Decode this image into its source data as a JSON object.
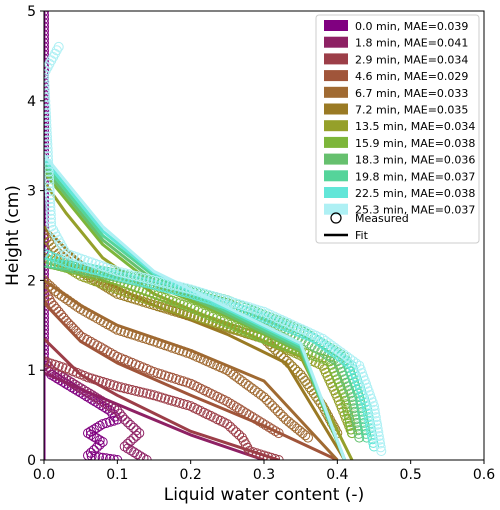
{
  "chart_data": {
    "type": "line",
    "title": "",
    "xlabel": "Liquid water content (-)",
    "ylabel": "Height (cm)",
    "xlim": [
      0.0,
      0.6
    ],
    "ylim": [
      0,
      5
    ],
    "xticks": [
      "0.0",
      "0.1",
      "0.2",
      "0.3",
      "0.4",
      "0.5",
      "0.6"
    ],
    "yticks": [
      "0",
      "1",
      "2",
      "3",
      "4",
      "5"
    ],
    "grid": false,
    "legend_position": "top-right",
    "legend_measured": "Measured",
    "legend_fit": "Fit",
    "series": [
      {
        "name": "0.0 min, MAE=0.039",
        "color": "#800080",
        "fit": [
          [
            0.0,
            0.0
          ],
          [
            0.0,
            5.0
          ]
        ],
        "measured": [
          [
            0.1,
            0.0
          ],
          [
            0.06,
            0.05
          ],
          [
            0.08,
            0.2
          ],
          [
            0.06,
            0.3
          ],
          [
            0.08,
            0.4
          ],
          [
            0.1,
            0.45
          ],
          [
            0.09,
            0.55
          ],
          [
            0.07,
            0.65
          ],
          [
            0.05,
            0.75
          ],
          [
            0.03,
            0.85
          ],
          [
            0.01,
            0.95
          ],
          [
            0.0,
            1.05
          ],
          [
            0.0,
            5.0
          ]
        ]
      },
      {
        "name": "1.8 min, MAE=0.041",
        "color": "#8e2164",
        "fit": [
          [
            0.3,
            0.0
          ],
          [
            0.2,
            0.28
          ],
          [
            0.1,
            0.62
          ],
          [
            0.05,
            0.79
          ],
          [
            0.0,
            0.97
          ]
        ],
        "measured": [
          [
            0.14,
            0.0
          ],
          [
            0.11,
            0.15
          ],
          [
            0.13,
            0.3
          ],
          [
            0.11,
            0.45
          ],
          [
            0.1,
            0.55
          ],
          [
            0.07,
            0.7
          ],
          [
            0.05,
            0.8
          ],
          [
            0.03,
            0.9
          ],
          [
            0.01,
            1.0
          ],
          [
            0.0,
            1.1
          ]
        ]
      },
      {
        "name": "2.9 min, MAE=0.034",
        "color": "#9c3e48",
        "fit": [
          [
            0.32,
            0.0
          ],
          [
            0.2,
            0.32
          ],
          [
            0.1,
            0.72
          ],
          [
            0.05,
            0.95
          ],
          [
            0.0,
            1.35
          ]
        ],
        "measured": [
          [
            0.32,
            0.0
          ],
          [
            0.28,
            0.1
          ],
          [
            0.27,
            0.25
          ],
          [
            0.25,
            0.4
          ],
          [
            0.2,
            0.6
          ],
          [
            0.15,
            0.72
          ],
          [
            0.1,
            0.82
          ],
          [
            0.06,
            0.92
          ],
          [
            0.03,
            1.02
          ],
          [
            0.0,
            1.1
          ]
        ]
      },
      {
        "name": "4.6 min, MAE=0.029",
        "color": "#a0553a",
        "fit": [
          [
            0.4,
            0.0
          ],
          [
            0.3,
            0.38
          ],
          [
            0.2,
            0.72
          ],
          [
            0.1,
            1.08
          ],
          [
            0.05,
            1.32
          ],
          [
            0.0,
            1.75
          ]
        ],
        "measured": [
          [
            0.32,
            0.3
          ],
          [
            0.28,
            0.5
          ],
          [
            0.25,
            0.65
          ],
          [
            0.2,
            0.85
          ],
          [
            0.15,
            0.98
          ],
          [
            0.1,
            1.15
          ],
          [
            0.05,
            1.38
          ],
          [
            0.03,
            1.55
          ],
          [
            0.01,
            1.75
          ],
          [
            0.0,
            1.9
          ]
        ]
      },
      {
        "name": "6.7 min, MAE=0.033",
        "color": "#a06a32",
        "fit": [
          [
            0.4,
            0.0
          ],
          [
            0.3,
            0.88
          ],
          [
            0.2,
            1.22
          ],
          [
            0.1,
            1.5
          ],
          [
            0.05,
            1.72
          ],
          [
            0.0,
            2.0
          ]
        ],
        "measured": [
          [
            0.36,
            0.25
          ],
          [
            0.33,
            0.45
          ],
          [
            0.3,
            0.7
          ],
          [
            0.25,
            1.0
          ],
          [
            0.2,
            1.18
          ],
          [
            0.15,
            1.32
          ],
          [
            0.1,
            1.45
          ],
          [
            0.05,
            1.68
          ],
          [
            0.02,
            1.85
          ],
          [
            0.0,
            2.0
          ]
        ]
      },
      {
        "name": "7.2 min, MAE=0.035",
        "color": "#9a7a24",
        "fit": [
          [
            0.41,
            0.0
          ],
          [
            0.33,
            1.08
          ],
          [
            0.25,
            1.4
          ],
          [
            0.15,
            1.72
          ],
          [
            0.08,
            2.0
          ],
          [
            0.03,
            2.35
          ],
          [
            0.0,
            2.6
          ]
        ],
        "measured": [
          [
            0.4,
            0.3
          ],
          [
            0.38,
            0.6
          ],
          [
            0.35,
            0.95
          ],
          [
            0.3,
            1.35
          ],
          [
            0.2,
            1.6
          ],
          [
            0.1,
            1.85
          ],
          [
            0.05,
            2.1
          ],
          [
            0.02,
            2.3
          ],
          [
            0.0,
            2.5
          ]
        ]
      },
      {
        "name": "13.5 min, MAE=0.034",
        "color": "#95a02a",
        "fit": [
          [
            0.42,
            0.0
          ],
          [
            0.35,
            1.15
          ],
          [
            0.25,
            1.5
          ],
          [
            0.15,
            1.85
          ],
          [
            0.08,
            2.25
          ],
          [
            0.03,
            2.75
          ],
          [
            0.0,
            3.1
          ]
        ],
        "measured": [
          [
            0.42,
            0.3
          ],
          [
            0.4,
            0.7
          ],
          [
            0.38,
            1.05
          ],
          [
            0.3,
            1.35
          ],
          [
            0.2,
            1.62
          ],
          [
            0.1,
            1.9
          ],
          [
            0.05,
            2.05
          ],
          [
            0.02,
            2.2
          ],
          [
            0.0,
            2.25
          ]
        ]
      },
      {
        "name": "15.9 min, MAE=0.038",
        "color": "#7db63a",
        "fit": [
          [
            0.41,
            0.0
          ],
          [
            0.35,
            1.2
          ],
          [
            0.25,
            1.6
          ],
          [
            0.15,
            1.95
          ],
          [
            0.08,
            2.4
          ],
          [
            0.03,
            2.9
          ],
          [
            0.0,
            3.2
          ]
        ],
        "measured": [
          [
            0.42,
            0.3
          ],
          [
            0.41,
            0.7
          ],
          [
            0.39,
            1.1
          ],
          [
            0.3,
            1.35
          ],
          [
            0.2,
            1.7
          ],
          [
            0.1,
            2.0
          ],
          [
            0.05,
            2.1
          ],
          [
            0.0,
            2.2
          ]
        ]
      },
      {
        "name": "18.3 min, MAE=0.036",
        "color": "#66c06e",
        "fit": [
          [
            0.41,
            0.0
          ],
          [
            0.35,
            1.22
          ],
          [
            0.25,
            1.62
          ],
          [
            0.15,
            2.0
          ],
          [
            0.08,
            2.45
          ],
          [
            0.03,
            2.95
          ],
          [
            0.0,
            3.25
          ]
        ],
        "measured": [
          [
            0.43,
            0.25
          ],
          [
            0.42,
            0.7
          ],
          [
            0.4,
            1.1
          ],
          [
            0.33,
            1.45
          ],
          [
            0.25,
            1.75
          ],
          [
            0.15,
            1.95
          ],
          [
            0.05,
            2.12
          ],
          [
            0.0,
            2.2
          ]
        ]
      },
      {
        "name": "19.8 min, MAE=0.037",
        "color": "#55d49a",
        "fit": [
          [
            0.41,
            0.0
          ],
          [
            0.35,
            1.25
          ],
          [
            0.25,
            1.65
          ],
          [
            0.15,
            2.05
          ],
          [
            0.08,
            2.5
          ],
          [
            0.03,
            3.0
          ],
          [
            0.0,
            3.3
          ]
        ],
        "measured": [
          [
            0.44,
            0.25
          ],
          [
            0.43,
            0.7
          ],
          [
            0.41,
            1.15
          ],
          [
            0.35,
            1.45
          ],
          [
            0.25,
            1.78
          ],
          [
            0.15,
            2.0
          ],
          [
            0.05,
            2.15
          ],
          [
            0.0,
            2.2
          ]
        ]
      },
      {
        "name": "22.5 min, MAE=0.038",
        "color": "#62e6d8",
        "fit": [
          [
            0.41,
            0.0
          ],
          [
            0.35,
            1.28
          ],
          [
            0.25,
            1.68
          ],
          [
            0.15,
            2.08
          ],
          [
            0.08,
            2.55
          ],
          [
            0.03,
            3.05
          ],
          [
            0.0,
            3.35
          ]
        ],
        "measured": [
          [
            0.45,
            0.15
          ],
          [
            0.44,
            0.6
          ],
          [
            0.42,
            1.05
          ],
          [
            0.37,
            1.35
          ],
          [
            0.28,
            1.65
          ],
          [
            0.2,
            1.85
          ],
          [
            0.1,
            2.05
          ],
          [
            0.03,
            2.2
          ],
          [
            0.0,
            2.3
          ]
        ]
      },
      {
        "name": "25.3 min, MAE=0.037",
        "color": "#aef0f4",
        "fit": [
          [
            0.41,
            0.0
          ],
          [
            0.35,
            1.3
          ],
          [
            0.25,
            1.7
          ],
          [
            0.15,
            2.1
          ],
          [
            0.08,
            2.6
          ],
          [
            0.03,
            3.1
          ],
          [
            0.0,
            3.4
          ]
        ],
        "measured": [
          [
            0.46,
            0.1
          ],
          [
            0.45,
            0.6
          ],
          [
            0.43,
            1.05
          ],
          [
            0.38,
            1.35
          ],
          [
            0.3,
            1.65
          ],
          [
            0.2,
            1.9
          ],
          [
            0.1,
            2.1
          ],
          [
            0.03,
            2.3
          ],
          [
            0.01,
            2.6
          ],
          [
            0.0,
            4.3
          ],
          [
            0.02,
            4.6
          ]
        ]
      }
    ]
  }
}
